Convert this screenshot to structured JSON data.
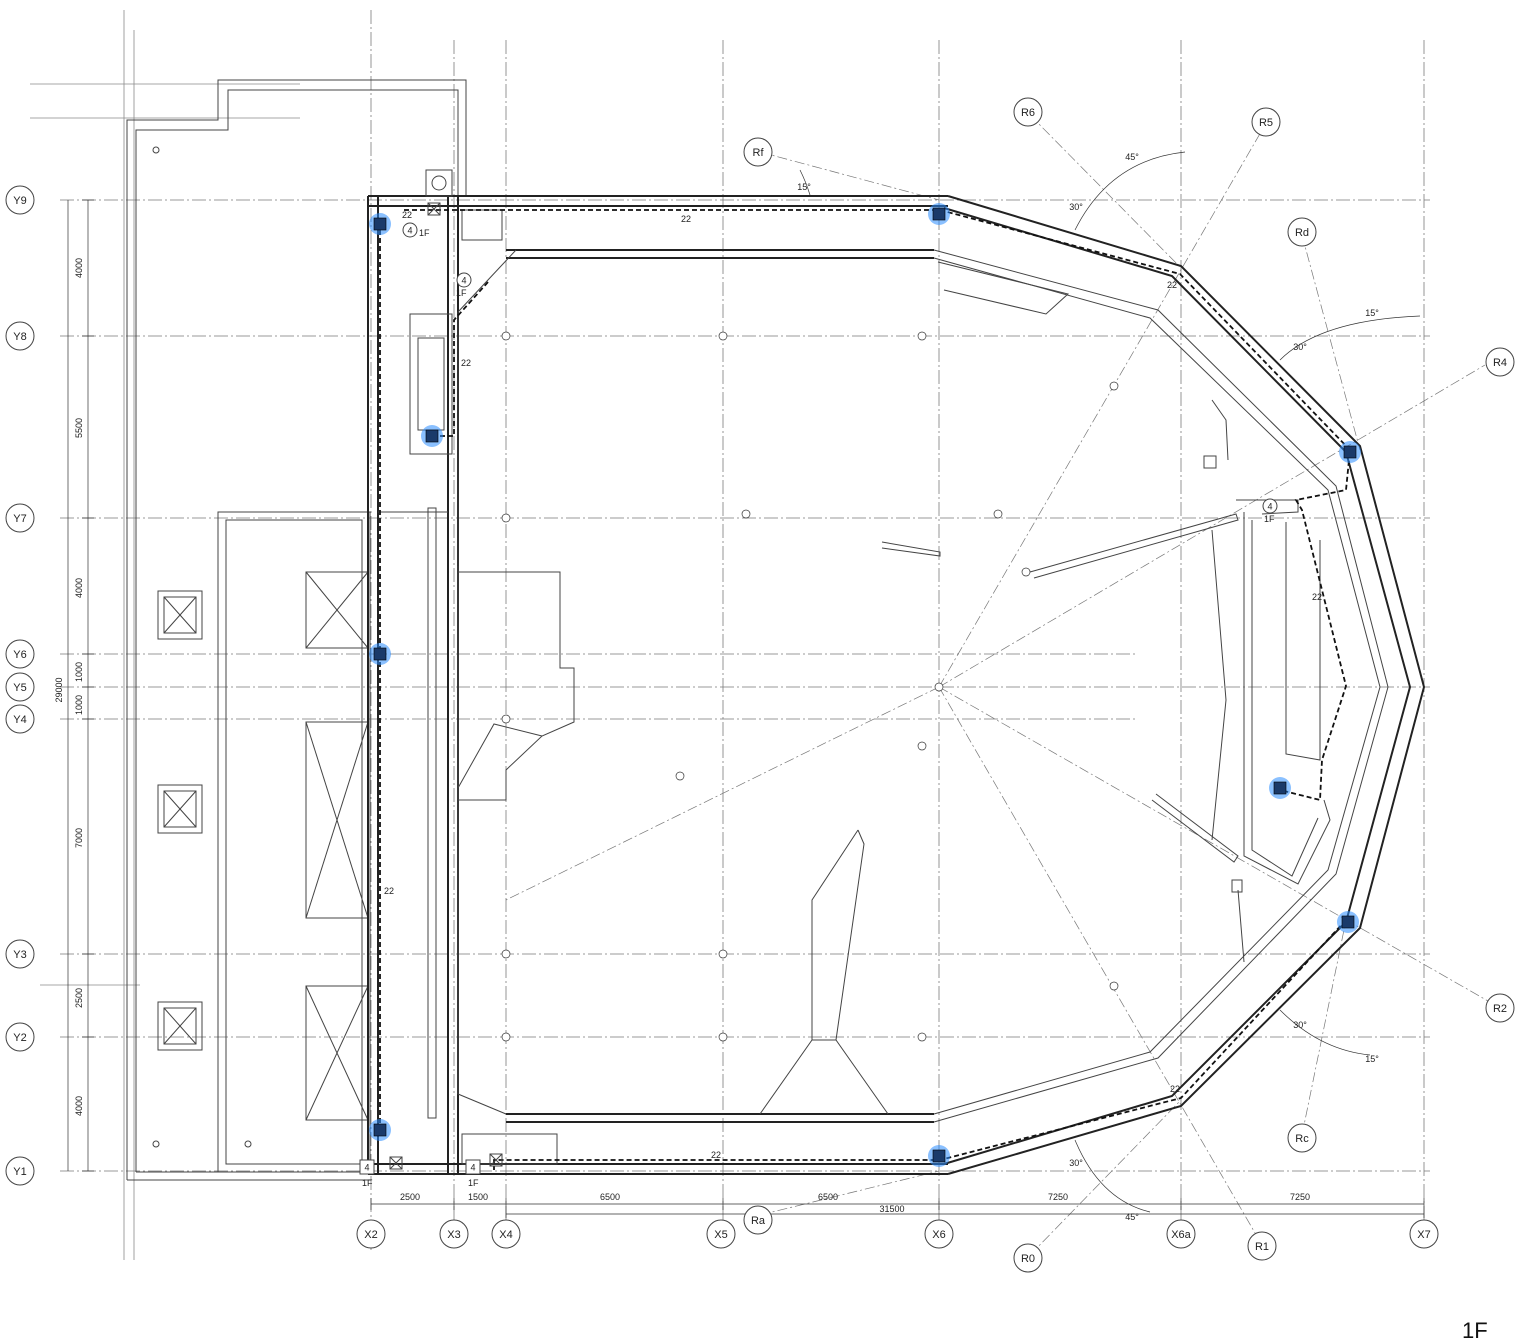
{
  "grid_y": [
    "Y9",
    "Y8",
    "Y7",
    "Y6",
    "Y5",
    "Y4",
    "Y3",
    "Y2",
    "Y1"
  ],
  "grid_x": [
    "X2",
    "X3",
    "X4",
    "X5",
    "X6",
    "X6a",
    "X7"
  ],
  "radial": [
    "Rf",
    "R6",
    "R5",
    "Rd",
    "R4",
    "R2",
    "Rc",
    "R1",
    "R0",
    "Ra"
  ],
  "dims_left": [
    "4000",
    "5500",
    "4000",
    "1000",
    "1000",
    "7000",
    "2500",
    "4000"
  ],
  "dim_total_left": "29000",
  "dims_bottom": [
    "2500",
    "1500",
    "6500",
    "6500",
    "7250",
    "7250"
  ],
  "dim_total_bottom": "31500",
  "angles": [
    "15°",
    "45°",
    "30°",
    "15°",
    "30°",
    "30°",
    "15°",
    "30°",
    "45°"
  ],
  "device_tags": [
    "22",
    "22",
    "22",
    "22",
    "22",
    "22",
    "22",
    "22"
  ],
  "callout_num": "4",
  "callout_tag": "1F",
  "stamp_text": "1F"
}
